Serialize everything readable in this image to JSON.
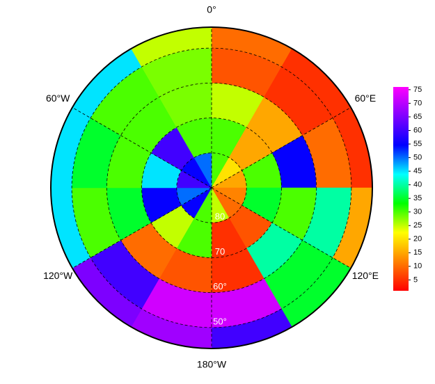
{
  "chart_data": {
    "type": "polar_heatmap",
    "lat_bins": [
      -90,
      -80,
      -70,
      -60,
      -50,
      -44
    ],
    "lon_bins": [
      0,
      30,
      60,
      90,
      120,
      150,
      180,
      210,
      240,
      270,
      300,
      330,
      360
    ],
    "values": [
      [
        30,
        20,
        15,
        12,
        10,
        25,
        30,
        55,
        50,
        60,
        55,
        50
      ],
      [
        30,
        15,
        30,
        35,
        8,
        5,
        30,
        25,
        55,
        45,
        60,
        30
      ],
      [
        25,
        15,
        55,
        30,
        40,
        5,
        8,
        10,
        35,
        30,
        30,
        28
      ],
      [
        8,
        5,
        10,
        40,
        35,
        72,
        72,
        60,
        30,
        35,
        30,
        28
      ],
      [
        10,
        5,
        5,
        15,
        35,
        60,
        68,
        65,
        45,
        45,
        45,
        25
      ]
    ],
    "rlim": [
      -90,
      -44
    ],
    "clim": [
      1,
      76
    ],
    "colormap": [
      "#ff0000",
      "#ff8000",
      "#ffff00",
      "#00ff00",
      "#00ffff",
      "#0000ff",
      "#8000ff",
      "#ff00ff"
    ],
    "colorbar_ticks": [
      5,
      10,
      15,
      20,
      25,
      30,
      35,
      40,
      45,
      50,
      55,
      60,
      65,
      70,
      75
    ],
    "lon_ticks": [
      {
        "value": 0,
        "label": "0°"
      },
      {
        "value": 60,
        "label": "60°E"
      },
      {
        "value": 120,
        "label": "120°E"
      },
      {
        "value": 180,
        "label": "180°W"
      },
      {
        "value": -120,
        "label": "120°W"
      },
      {
        "value": -60,
        "label": "60°W"
      }
    ],
    "lat_ticks": [
      {
        "value": -80,
        "label": "80"
      },
      {
        "value": -70,
        "label": "70"
      },
      {
        "value": -60,
        "label": "60°"
      },
      {
        "value": -50,
        "label": "50°"
      }
    ],
    "grid": true
  }
}
